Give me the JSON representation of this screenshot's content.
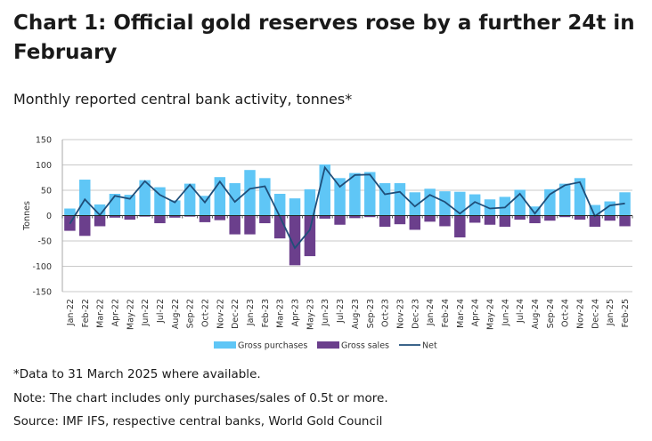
{
  "title": "Chart 1: Official gold reserves rose by a further 24t in February",
  "subtitle": "Monthly reported central bank activity, tonnes*",
  "notes": [
    "*Data to 31 March 2025 where available.",
    "Note: The chart includes only purchases/sales of 0.5t or more.",
    "Source: IMF IFS, respective central banks, World Gold Council"
  ],
  "chart_data": {
    "type": "bar",
    "ylabel": "Tonnes",
    "ylim": [
      -150,
      150
    ],
    "yticks": [
      150,
      100,
      50,
      0,
      -50,
      -100,
      -150
    ],
    "grid": true,
    "legend_position": "bottom",
    "colors": {
      "purchases": "#5fc6f6",
      "sales": "#6b3f8c",
      "net": "#1f4e79"
    },
    "categories": [
      "Jan-22",
      "Feb-22",
      "Mar-22",
      "Apr-22",
      "May-22",
      "Jun-22",
      "Jul-22",
      "Aug-22",
      "Sep-22",
      "Oct-22",
      "Nov-22",
      "Dec-22",
      "Jan-23",
      "Feb-23",
      "Mar-23",
      "Apr-23",
      "May-23",
      "Jun-23",
      "Jul-23",
      "Aug-23",
      "Sep-23",
      "Oct-23",
      "Nov-23",
      "Dec-23",
      "Jan-24",
      "Feb-24",
      "Mar-24",
      "Apr-24",
      "May-24",
      "Jun-24",
      "Jul-24",
      "Aug-24",
      "Sep-24",
      "Oct-24",
      "Nov-24",
      "Dec-24",
      "Jan-25",
      "Feb-25"
    ],
    "series": [
      {
        "name": "Gross purchases",
        "type": "bar",
        "values": [
          14,
          71,
          22,
          43,
          41,
          70,
          56,
          30,
          63,
          39,
          76,
          64,
          90,
          74,
          43,
          34,
          52,
          101,
          74,
          84,
          86,
          64,
          64,
          46,
          53,
          48,
          47,
          42,
          32,
          37,
          51,
          18,
          52,
          63,
          74,
          21,
          28,
          46
        ]
      },
      {
        "name": "Gross sales",
        "type": "bar",
        "values": [
          -30,
          -40,
          -21,
          -4,
          -8,
          -2,
          -15,
          -4,
          -2,
          -13,
          -9,
          -37,
          -37,
          -15,
          -45,
          -98,
          -80,
          -6,
          -18,
          -5,
          -3,
          -22,
          -17,
          -28,
          -12,
          -21,
          -43,
          -14,
          -18,
          -22,
          -8,
          -15,
          -10,
          -3,
          -8,
          -22,
          -10,
          -21
        ]
      },
      {
        "name": "Net",
        "type": "line",
        "values": [
          -16,
          32,
          1,
          39,
          33,
          68,
          41,
          26,
          61,
          26,
          67,
          27,
          53,
          58,
          -2,
          -64,
          -28,
          95,
          57,
          80,
          81,
          42,
          47,
          18,
          41,
          27,
          4,
          27,
          14,
          16,
          43,
          4,
          42,
          60,
          66,
          -1,
          20,
          24
        ]
      }
    ]
  }
}
